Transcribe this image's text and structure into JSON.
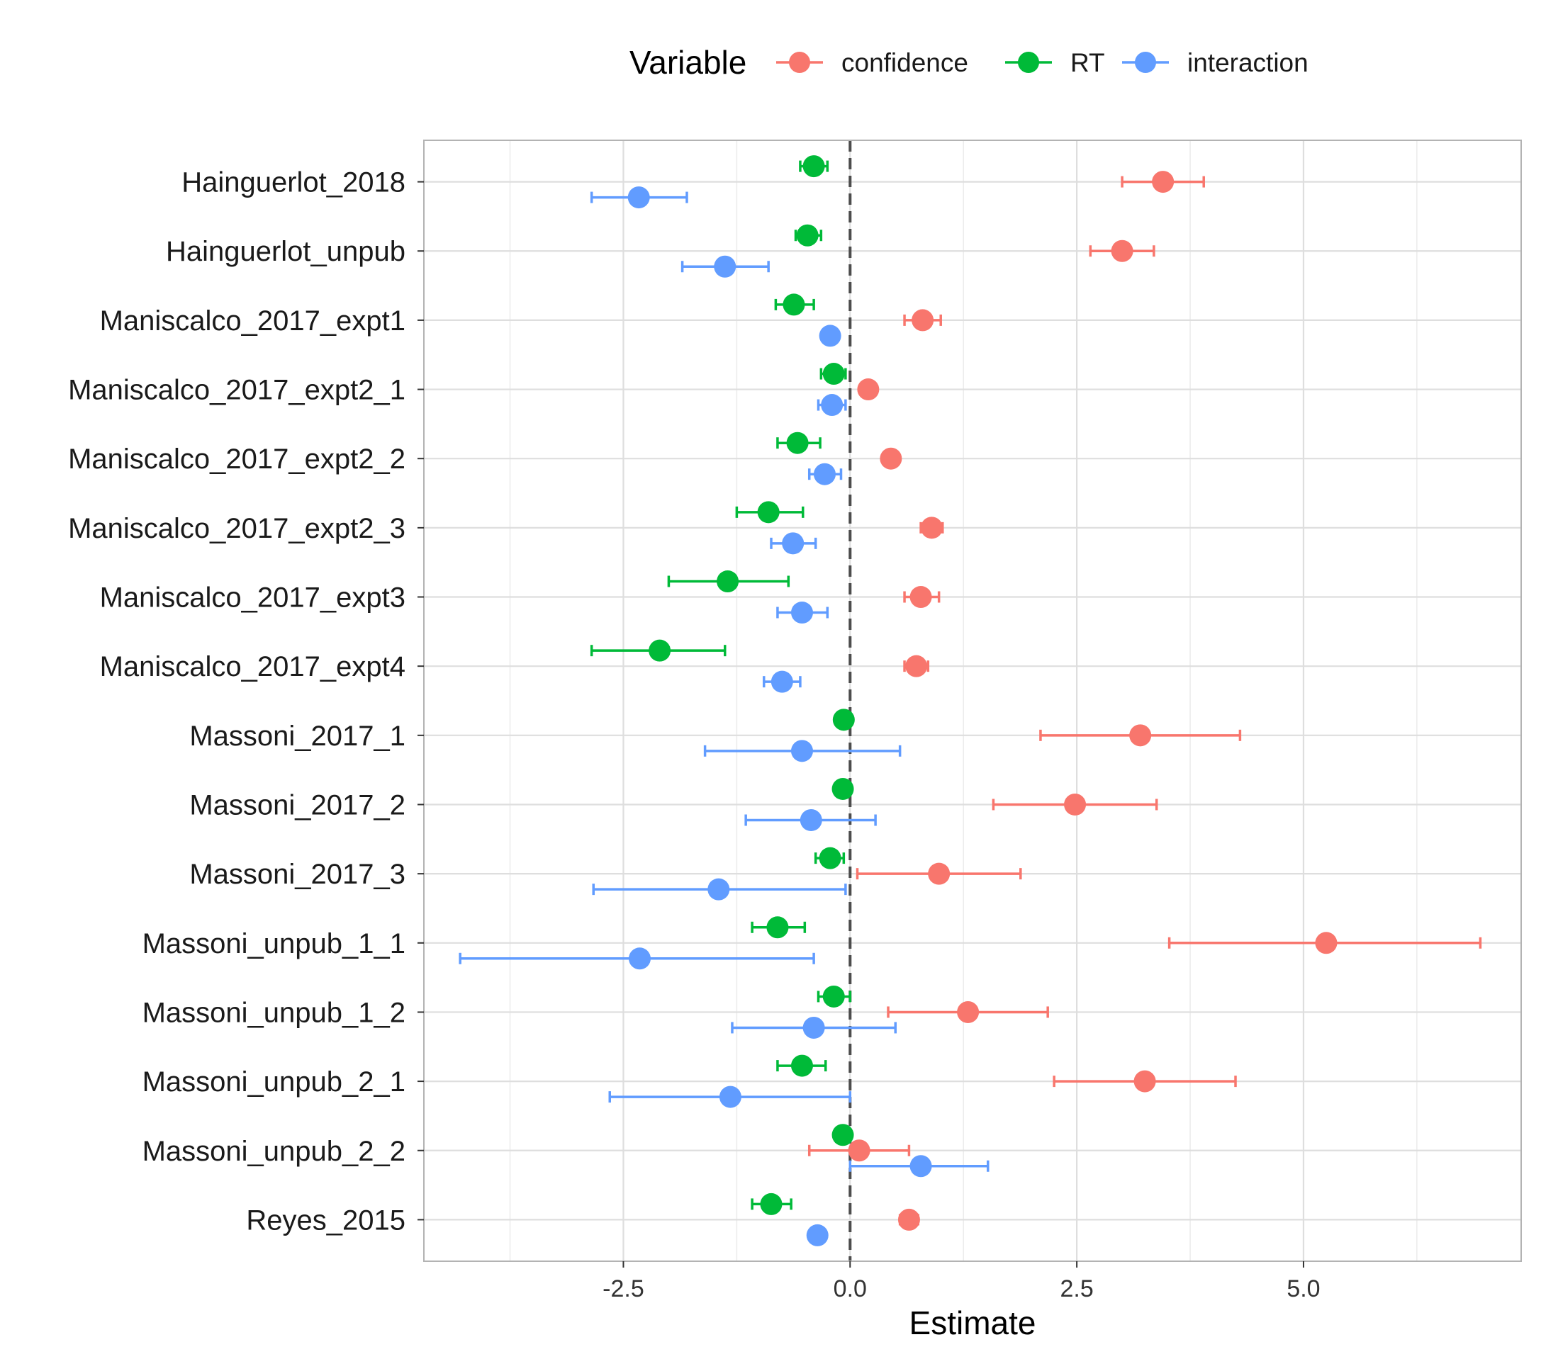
{
  "chart_data": {
    "type": "scatter",
    "title": "",
    "xlabel": "Estimate",
    "ylabel": "",
    "xlim": [
      -4.7,
      7.4
    ],
    "x_ticks": [
      -2.5,
      0.0,
      2.5,
      5.0
    ],
    "x_tick_labels": [
      "-2.5",
      "0.0",
      "2.5",
      "5.0"
    ],
    "reference_line": 0,
    "grid": true,
    "legend_position": "top",
    "legend_title": "Variable",
    "categories": [
      "Hainguerlot_2018",
      "Hainguerlot_unpub",
      "Maniscalco_2017_expt1",
      "Maniscalco_2017_expt2_1",
      "Maniscalco_2017_expt2_2",
      "Maniscalco_2017_expt2_3",
      "Maniscalco_2017_expt3",
      "Maniscalco_2017_expt4",
      "Massoni_2017_1",
      "Massoni_2017_2",
      "Massoni_2017_3",
      "Massoni_unpub_1_1",
      "Massoni_unpub_1_2",
      "Massoni_unpub_2_1",
      "Massoni_unpub_2_2",
      "Reyes_2015"
    ],
    "series": [
      {
        "name": "confidence",
        "color": "#F8766D",
        "estimates": [
          3.45,
          3.0,
          0.8,
          0.2,
          0.45,
          0.9,
          0.78,
          0.73,
          3.2,
          2.48,
          0.98,
          5.25,
          1.3,
          3.25,
          0.1,
          0.65
        ],
        "lower": [
          3.0,
          2.65,
          0.6,
          0.15,
          0.42,
          0.78,
          0.6,
          0.6,
          2.1,
          1.58,
          0.08,
          3.52,
          0.42,
          2.25,
          -0.45,
          0.55
        ],
        "upper": [
          3.9,
          3.35,
          1.0,
          0.25,
          0.5,
          1.02,
          0.98,
          0.86,
          4.3,
          3.38,
          1.88,
          6.95,
          2.18,
          4.25,
          0.65,
          0.75
        ]
      },
      {
        "name": "RT",
        "color": "#00BA38",
        "estimates": [
          -0.4,
          -0.47,
          -0.62,
          -0.18,
          -0.58,
          -0.9,
          -1.35,
          -2.1,
          -0.07,
          -0.08,
          -0.22,
          -0.8,
          -0.18,
          -0.53,
          -0.08,
          -0.87
        ],
        "lower": [
          -0.55,
          -0.6,
          -0.82,
          -0.32,
          -0.8,
          -1.25,
          -2.0,
          -2.85,
          -0.12,
          -0.13,
          -0.38,
          -1.08,
          -0.35,
          -0.8,
          -0.13,
          -1.08
        ],
        "upper": [
          -0.25,
          -0.32,
          -0.4,
          -0.05,
          -0.33,
          -0.52,
          -0.68,
          -1.38,
          -0.02,
          -0.03,
          -0.07,
          -0.5,
          0.0,
          -0.27,
          -0.03,
          -0.65
        ]
      },
      {
        "name": "interaction",
        "color": "#619CFF",
        "estimates": [
          -2.33,
          -1.38,
          -0.22,
          -0.2,
          -0.28,
          -0.63,
          -0.53,
          -0.75,
          -0.53,
          -0.43,
          -1.45,
          -2.32,
          -0.4,
          -1.32,
          0.78,
          -0.36
        ],
        "lower": [
          -2.85,
          -1.85,
          -0.27,
          -0.35,
          -0.45,
          -0.87,
          -0.8,
          -0.95,
          -1.6,
          -1.15,
          -2.83,
          -4.3,
          -1.3,
          -2.65,
          0.0,
          -0.41
        ],
        "upper": [
          -1.8,
          -0.9,
          -0.17,
          -0.05,
          -0.1,
          -0.38,
          -0.25,
          -0.55,
          0.55,
          0.28,
          -0.05,
          -0.4,
          0.5,
          0.0,
          1.52,
          -0.31
        ]
      }
    ]
  }
}
